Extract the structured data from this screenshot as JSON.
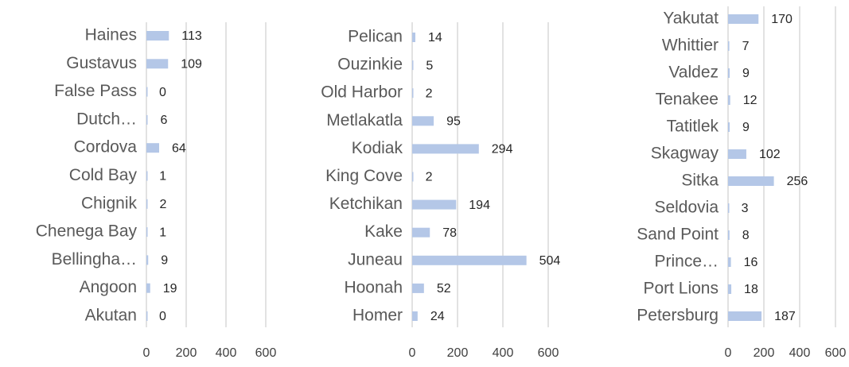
{
  "chart_data": [
    {
      "type": "bar",
      "orientation": "horizontal",
      "color": "#b4c7e7",
      "grid": true,
      "categories": [
        "Haines",
        "Gustavus",
        "False Pass",
        "Dutch…",
        "Cordova",
        "Cold Bay",
        "Chignik",
        "Chenega Bay",
        "Bellingha…",
        "Angoon",
        "Akutan"
      ],
      "values": [
        113,
        109,
        0,
        6,
        64,
        1,
        2,
        1,
        9,
        19,
        0
      ],
      "xlim": [
        0,
        600
      ],
      "xticks": [
        0,
        200,
        400,
        600
      ]
    },
    {
      "type": "bar",
      "orientation": "horizontal",
      "color": "#b4c7e7",
      "grid": true,
      "categories": [
        "Pelican",
        "Ouzinkie",
        "Old Harbor",
        "Metlakatla",
        "Kodiak",
        "King Cove",
        "Ketchikan",
        "Kake",
        "Juneau",
        "Hoonah",
        "Homer"
      ],
      "values": [
        14,
        5,
        2,
        95,
        294,
        2,
        194,
        78,
        504,
        52,
        24
      ],
      "xlim": [
        0,
        600
      ],
      "xticks": [
        0,
        200,
        400,
        600
      ]
    },
    {
      "type": "bar",
      "orientation": "horizontal",
      "color": "#b4c7e7",
      "grid": true,
      "categories": [
        "Yakutat",
        "Whittier",
        "Valdez",
        "Tenakee",
        "Tatitlek",
        "Skagway",
        "Sitka",
        "Seldovia",
        "Sand Point",
        "Prince…",
        "Port Lions",
        "Petersburg"
      ],
      "values": [
        170,
        7,
        9,
        12,
        9,
        102,
        256,
        3,
        8,
        16,
        18,
        187
      ],
      "xlim": [
        0,
        600
      ],
      "xticks": [
        0,
        200,
        400,
        600
      ]
    }
  ]
}
